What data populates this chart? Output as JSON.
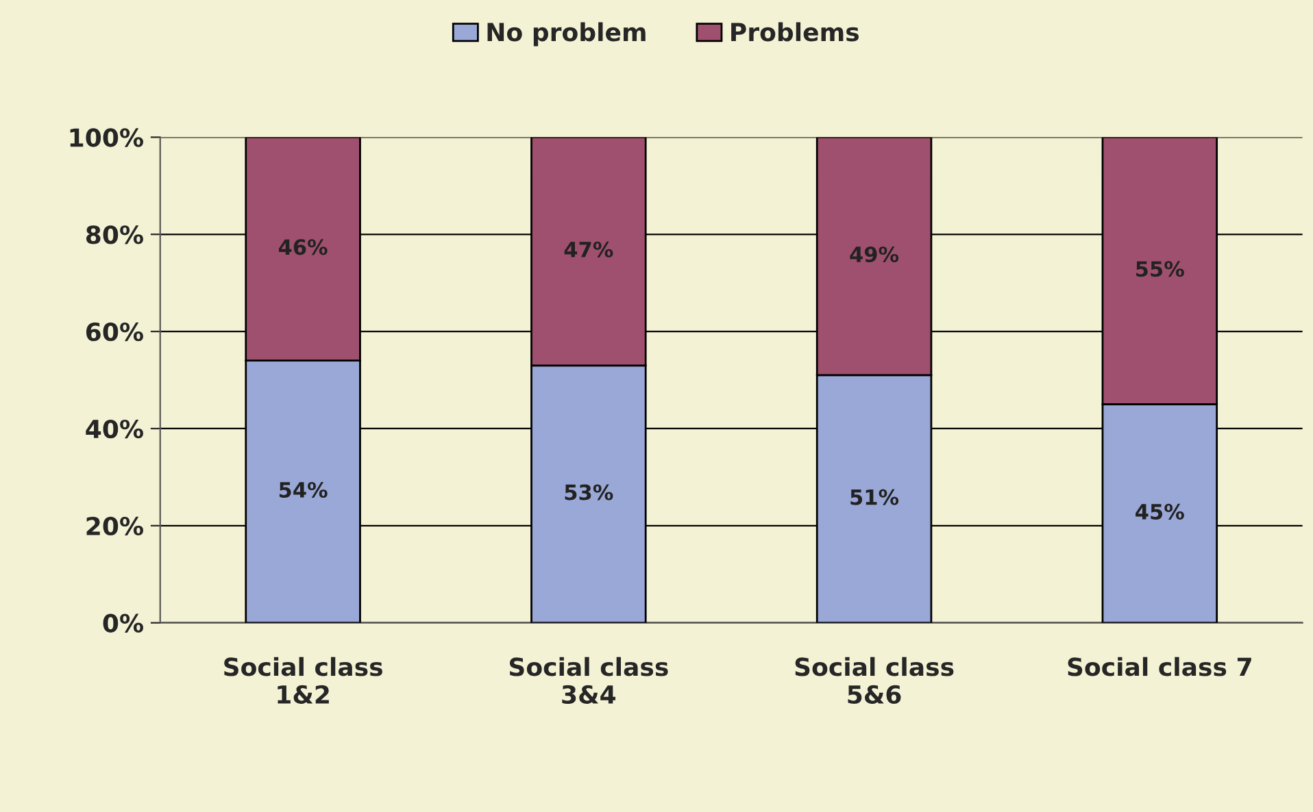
{
  "chart_data": {
    "type": "bar",
    "stacked": true,
    "categories": [
      "Social class\n1&2",
      "Social class\n3&4",
      "Social class\n5&6",
      "Social class 7"
    ],
    "series": [
      {
        "name": "No problem",
        "color": "#99a8d6",
        "values": [
          54,
          53,
          51,
          45
        ],
        "value_labels": [
          "54%",
          "53%",
          "51%",
          "45%"
        ]
      },
      {
        "name": "Problems",
        "color": "#a0506f",
        "values": [
          46,
          47,
          49,
          55
        ],
        "value_labels": [
          "46%",
          "47%",
          "49%",
          "55%"
        ]
      }
    ],
    "ylim": [
      0,
      100
    ],
    "yticks": [
      {
        "value": 0,
        "label": "0%"
      },
      {
        "value": 20,
        "label": "20%"
      },
      {
        "value": 40,
        "label": "40%"
      },
      {
        "value": 60,
        "label": "60%"
      },
      {
        "value": 80,
        "label": "80%"
      },
      {
        "value": 100,
        "label": "100%"
      }
    ],
    "grid": "y",
    "legend": "top"
  }
}
